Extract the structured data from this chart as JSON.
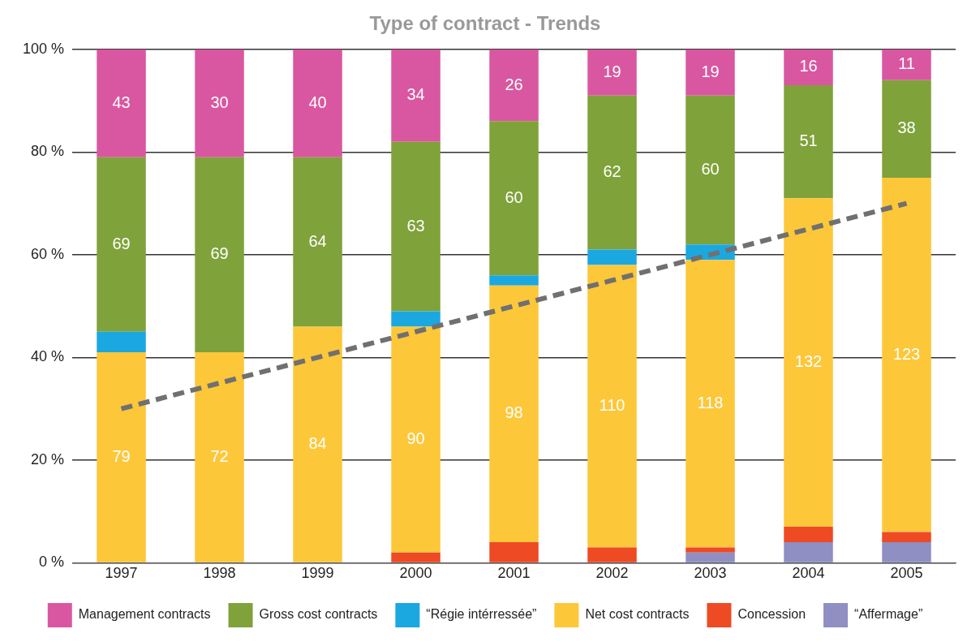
{
  "chart_data": {
    "type": "bar",
    "title": "Type of contract - Trends",
    "stacked": true,
    "grid": "y",
    "legend": "bottom",
    "categories": [
      "1997",
      "1998",
      "1999",
      "2000",
      "2001",
      "2002",
      "2003",
      "2004",
      "2005"
    ],
    "ylim": [
      0,
      100
    ],
    "yticks": [
      {
        "value": 0,
        "label": "0 %"
      },
      {
        "value": 20,
        "label": "20 %"
      },
      {
        "value": 40,
        "label": "40 %"
      },
      {
        "value": 60,
        "label": "60 %"
      },
      {
        "value": 80,
        "label": "80 %"
      },
      {
        "value": 100,
        "label": "100 %"
      }
    ],
    "series": [
      {
        "name": "“Affermage”",
        "color": "#8f8fc4",
        "values": [
          0,
          0,
          0,
          0,
          0,
          0,
          2,
          4,
          4
        ]
      },
      {
        "name": "Concession",
        "color": "#ee4a24",
        "values": [
          0,
          0,
          0,
          2,
          4,
          3,
          1,
          3,
          2
        ]
      },
      {
        "name": "Net cost contracts",
        "color": "#fdc73a",
        "values": [
          41,
          41,
          46,
          44,
          50,
          55,
          56,
          64,
          69
        ]
      },
      {
        "name": "“Régie intérressée”",
        "color": "#1ba8e0",
        "values": [
          4,
          0,
          0,
          3,
          2,
          3,
          3,
          0,
          0
        ]
      },
      {
        "name": "Gross cost contracts",
        "color": "#7fa23a",
        "values": [
          34,
          38,
          33,
          33,
          30,
          30,
          29,
          22,
          19
        ]
      },
      {
        "name": "Management contracts",
        "color": "#d957a0",
        "values": [
          21,
          21,
          21,
          18,
          14,
          9,
          9,
          7,
          6
        ]
      },
      {
        "type": "line",
        "color": "#707070",
        "line_style": "dashed",
        "marker": "none",
        "values": [
          30,
          35,
          40,
          45,
          50,
          55,
          60,
          65,
          70
        ]
      }
    ],
    "annotations": [
      "79",
      "72",
      "84",
      "90",
      "98",
      "110",
      "118",
      "132",
      "123",
      "69",
      "69",
      "64",
      "63",
      "60",
      "62",
      "60",
      "51",
      "38",
      "43",
      "30",
      "40",
      "34",
      "26",
      "19",
      "19",
      "16",
      "11"
    ]
  }
}
